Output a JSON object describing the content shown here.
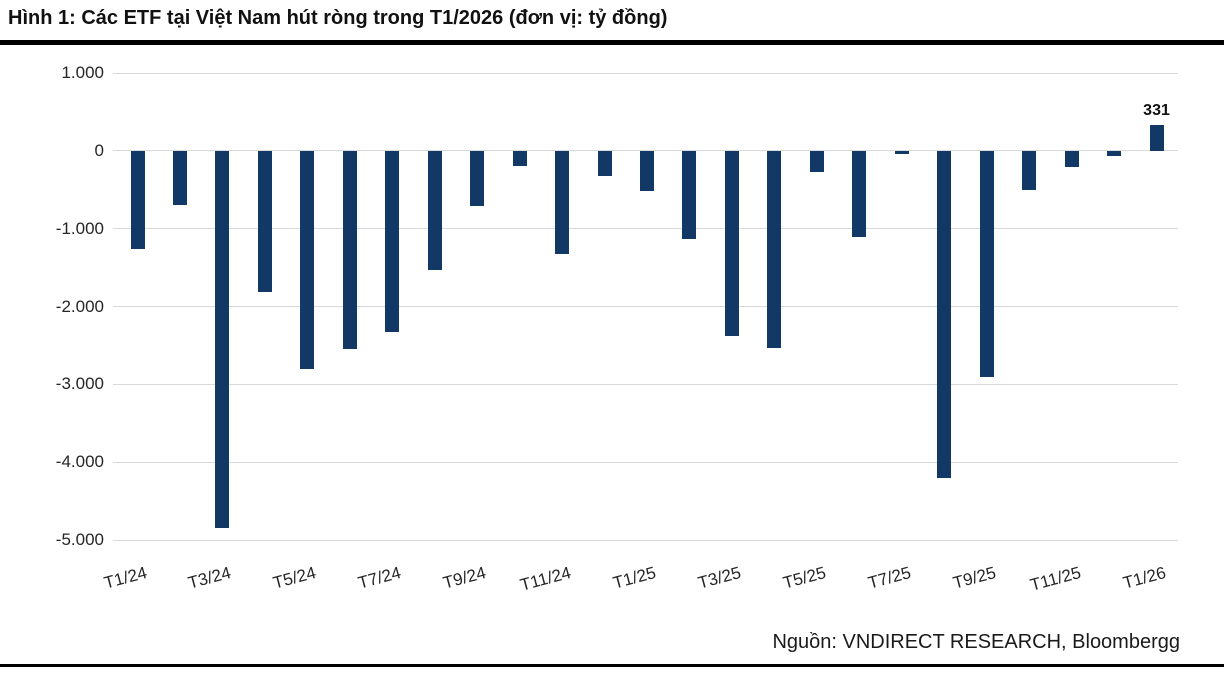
{
  "header": {
    "title": "Hình 1: Các ETF tại Việt Nam hút ròng trong T1/2026 (đơn vị: tỷ đồng)"
  },
  "footer": {
    "source": "Nguồn: VNDIRECT RESEARCH, Bloombergg"
  },
  "colors": {
    "bar": "#123866",
    "gridline": "#d9d9d9",
    "rule": "#000000"
  },
  "chart_data": {
    "type": "bar",
    "title": "Các ETF tại Việt Nam hút ròng trong T1/2026",
    "unit": "tỷ đồng",
    "categories": [
      "T1/24",
      "T2/24",
      "T3/24",
      "T4/24",
      "T5/24",
      "T6/24",
      "T7/24",
      "T8/24",
      "T9/24",
      "T10/24",
      "T11/24",
      "T12/24",
      "T1/25",
      "T2/25",
      "T3/25",
      "T4/25",
      "T5/25",
      "T6/25",
      "T7/25",
      "T8/25",
      "T9/25",
      "T10/25",
      "T11/25",
      "T12/25",
      "T1/26"
    ],
    "values": [
      -1260,
      -700,
      -4850,
      -1820,
      -2800,
      -2550,
      -2330,
      -1530,
      -710,
      -190,
      -1330,
      -320,
      -520,
      -1130,
      -2380,
      -2530,
      -270,
      -1110,
      -40,
      -4200,
      -2900,
      -500,
      -210,
      -70,
      331
    ],
    "data_labels": [
      {
        "category": "T1/26",
        "index": 24,
        "text": "331"
      }
    ],
    "x_tick_labels": [
      "T1/24",
      "T3/24",
      "T5/24",
      "T7/24",
      "T9/24",
      "T11/24",
      "T1/25",
      "T3/25",
      "T5/25",
      "T7/25",
      "T9/25",
      "T11/25",
      "T1/26"
    ],
    "x_tick_indices": [
      0,
      2,
      4,
      6,
      8,
      10,
      12,
      14,
      16,
      18,
      20,
      22,
      24
    ],
    "y_ticks": [
      1000,
      0,
      -1000,
      -2000,
      -3000,
      -4000,
      -5000
    ],
    "y_tick_labels": [
      "1.000",
      "0",
      "-1.000",
      "-2.000",
      "-3.000",
      "-4.000",
      "-5.000"
    ],
    "ylim": [
      -5000,
      1000
    ],
    "grid": "horizontal",
    "legend": "none",
    "xlabel": "",
    "ylabel": ""
  }
}
